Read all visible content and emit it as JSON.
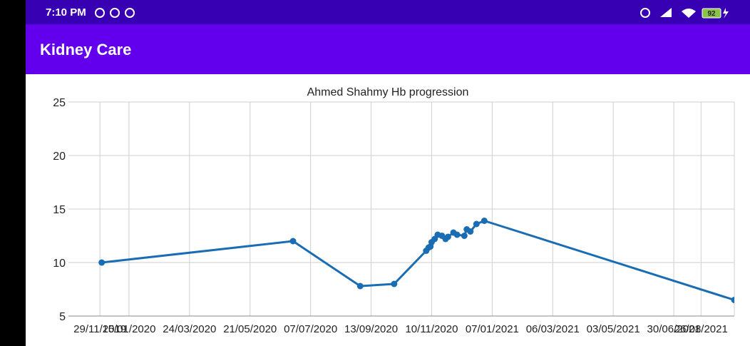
{
  "status_bar": {
    "time": "7:10 PM",
    "battery": "92"
  },
  "app_bar": {
    "title": "Kidney Care"
  },
  "chart_data": {
    "type": "line",
    "title": "Ahmed Shahmy Hb progression",
    "x": [
      0.55,
      3.71,
      4.82,
      5.38,
      5.91,
      5.95,
      5.98,
      6.0,
      6.05,
      6.1,
      6.17,
      6.23,
      6.27,
      6.36,
      6.42,
      6.54,
      6.58,
      6.64,
      6.74,
      6.87,
      11.0
    ],
    "series": [
      {
        "name": "Hb",
        "color": "#1a6db3",
        "values": [
          10.0,
          12.0,
          7.8,
          8.0,
          11.1,
          11.4,
          11.5,
          11.9,
          12.2,
          12.6,
          12.5,
          12.2,
          12.4,
          12.8,
          12.6,
          12.5,
          13.1,
          12.9,
          13.6,
          13.9,
          6.5
        ]
      }
    ],
    "xlim": [
      0,
      11
    ],
    "ylim": [
      5,
      25
    ],
    "yticks": [
      5,
      10,
      15,
      20,
      25
    ],
    "xticks": [
      {
        "value": 0.52,
        "label": "29/11/2019"
      },
      {
        "value": 1,
        "label": "15/01/2020"
      },
      {
        "value": 2,
        "label": "24/03/2020"
      },
      {
        "value": 3,
        "label": "21/05/2020"
      },
      {
        "value": 4,
        "label": "07/07/2020"
      },
      {
        "value": 5,
        "label": "13/09/2020"
      },
      {
        "value": 6,
        "label": "10/11/2020"
      },
      {
        "value": 7,
        "label": "07/01/2021"
      },
      {
        "value": 8,
        "label": "06/03/2021"
      },
      {
        "value": 9,
        "label": "03/05/2021"
      },
      {
        "value": 10,
        "label": "30/06/2021"
      },
      {
        "value": 10.45,
        "label": "26/08/2021"
      }
    ],
    "grid": true
  }
}
